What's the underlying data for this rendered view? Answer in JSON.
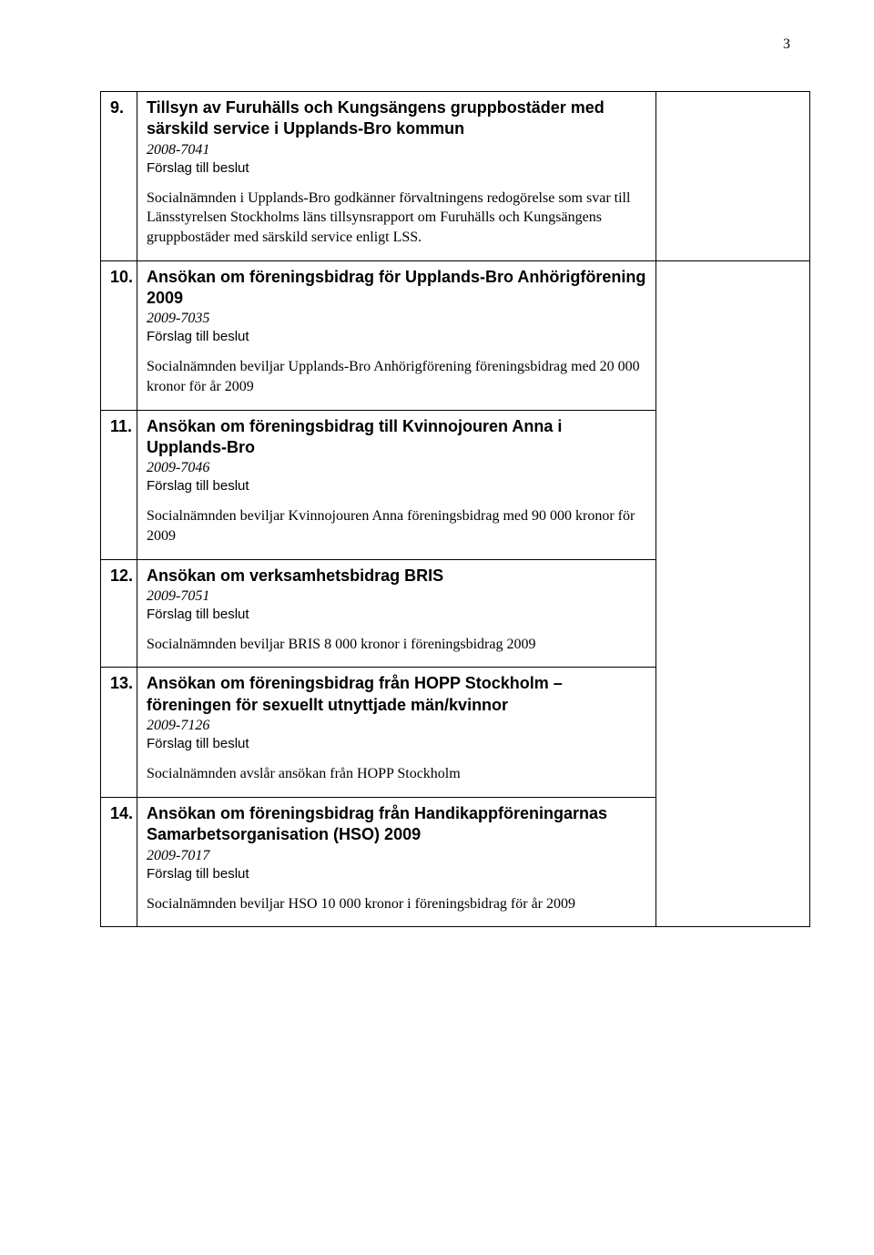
{
  "page_number": "3",
  "forslag_label": "Förslag till beslut",
  "items": [
    {
      "num": "9.",
      "heading": "Tillsyn av Furuhälls och Kungsängens gruppbostäder med särskild service i Upplands-Bro kommun",
      "dnr": "2008-7041",
      "body": "Socialnämnden i Upplands-Bro godkänner förvaltningens redogörelse som svar till Länsstyrelsen Stockholms läns tillsynsrapport om Furuhälls och Kungsängens gruppbostäder med särskild service enligt LSS."
    },
    {
      "num": "10.",
      "heading": "Ansökan om föreningsbidrag för Upplands-Bro Anhörigförening 2009",
      "dnr": "2009-7035",
      "body": "Socialnämnden beviljar Upplands-Bro Anhörigförening föreningsbidrag med 20 000 kronor för år 2009"
    },
    {
      "num": "11.",
      "heading": "Ansökan om föreningsbidrag till Kvinnojouren Anna i Upplands-Bro",
      "dnr": "2009-7046",
      "body": "Socialnämnden beviljar Kvinnojouren Anna föreningsbidrag med 90 000 kronor för 2009"
    },
    {
      "num": "12.",
      "heading": "Ansökan om verksamhetsbidrag BRIS",
      "dnr": "2009-7051",
      "body": "Socialnämnden beviljar BRIS 8 000 kronor i föreningsbidrag 2009"
    },
    {
      "num": "13.",
      "heading": "Ansökan om föreningsbidrag från HOPP Stockholm – föreningen för sexuellt utnyttjade män/kvinnor",
      "dnr": "2009-7126",
      "body": "Socialnämnden avslår ansökan från HOPP Stockholm"
    },
    {
      "num": "14.",
      "heading": "Ansökan om föreningsbidrag från Handikappföreningarnas Samarbetsorganisation (HSO) 2009",
      "dnr": "2009-7017",
      "body": "Socialnämnden beviljar HSO 10 000 kronor i föreningsbidrag för år 2009"
    }
  ]
}
